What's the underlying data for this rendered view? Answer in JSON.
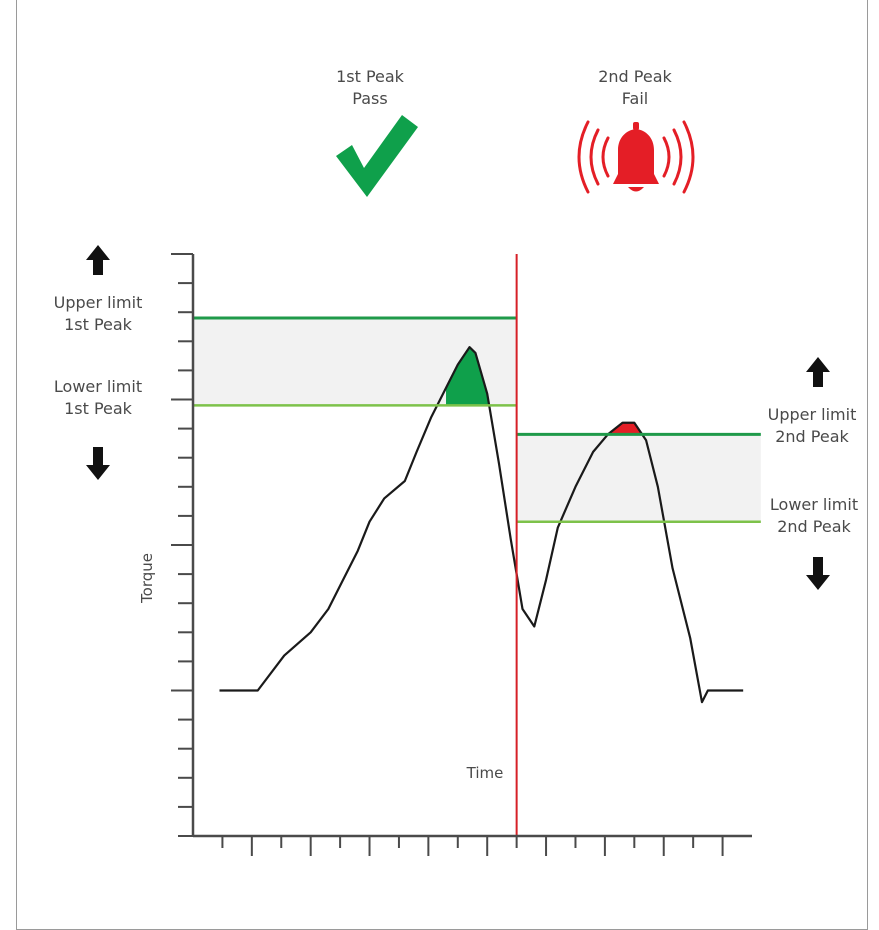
{
  "chart_data": {
    "type": "line",
    "xlabel": "Time",
    "ylabel": "Torque",
    "ylim": [
      0,
      10
    ],
    "xlim": [
      0,
      19
    ],
    "grid": false,
    "peak1": {
      "title": "1st Peak",
      "status": "Pass",
      "upper_label_1": "Upper limit",
      "upper_label_2": "1st Peak",
      "lower_label_1": "Lower limit",
      "lower_label_2": "1st Peak",
      "upper_limit": 8.9,
      "lower_limit": 7.4,
      "x_range": [
        0,
        11
      ]
    },
    "peak2": {
      "title": "2nd Peak",
      "status": "Fail",
      "upper_label_1": "Upper limit",
      "upper_label_2": "2nd Peak",
      "lower_label_1": "Lower limit",
      "lower_label_2": "2nd Peak",
      "upper_limit": 6.9,
      "lower_limit": 5.4,
      "x_range": [
        11,
        19.3
      ]
    },
    "divider_x": 11,
    "torque_curve": [
      [
        0.9,
        2.5
      ],
      [
        2.2,
        2.5
      ],
      [
        3.1,
        3.1
      ],
      [
        4.0,
        3.5
      ],
      [
        4.6,
        3.9
      ],
      [
        5.1,
        4.4
      ],
      [
        5.6,
        4.9
      ],
      [
        6.0,
        5.4
      ],
      [
        6.5,
        5.8
      ],
      [
        7.2,
        6.1
      ],
      [
        7.6,
        6.6
      ],
      [
        8.1,
        7.2
      ],
      [
        8.6,
        7.7
      ],
      [
        9.0,
        8.1
      ],
      [
        9.4,
        8.4
      ],
      [
        9.6,
        8.3
      ],
      [
        10.0,
        7.6
      ],
      [
        10.4,
        6.4
      ],
      [
        10.8,
        5.1
      ],
      [
        11.2,
        3.9
      ],
      [
        11.6,
        3.6
      ],
      [
        12.0,
        4.4
      ],
      [
        12.4,
        5.3
      ],
      [
        13.0,
        6.0
      ],
      [
        13.6,
        6.6
      ],
      [
        14.1,
        6.9
      ],
      [
        14.6,
        7.1
      ],
      [
        15.0,
        7.1
      ],
      [
        15.4,
        6.8
      ],
      [
        15.8,
        6.0
      ],
      [
        16.3,
        4.6
      ],
      [
        16.9,
        3.4
      ],
      [
        17.3,
        2.3
      ],
      [
        17.5,
        2.5
      ],
      [
        18.7,
        2.5
      ]
    ],
    "peak1_fill_x": [
      8.6,
      10.3
    ],
    "peak2_fill_x": [
      14.1,
      15.3
    ],
    "colors": {
      "upper_limit": "#1f9a4a",
      "lower_limit": "#7dc24a",
      "band": "#f2f2f2",
      "pass": "#0fa04b",
      "fail": "#e41e26",
      "divider": "#d62027",
      "curve": "#1a1a1a",
      "axis": "#4a4a4a"
    },
    "icons": {
      "pass": "checkmark-icon",
      "fail": "alarm-bell-icon",
      "up": "arrow-up-icon",
      "down": "arrow-down-icon"
    }
  }
}
